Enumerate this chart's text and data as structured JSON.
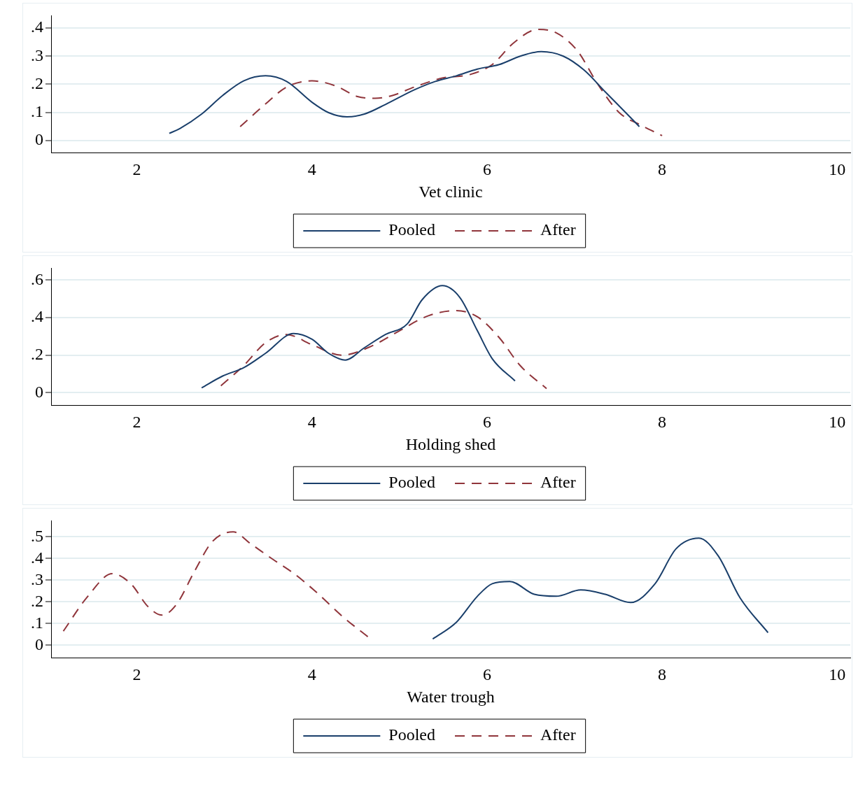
{
  "chart_data": [
    {
      "type": "line",
      "xlabel": "Vet clinic",
      "xlim": [
        1.02,
        10.15
      ],
      "xticks": [
        2,
        4,
        6,
        8,
        10
      ],
      "ylim": [
        -0.044,
        0.444
      ],
      "yticks": [
        {
          "value": 0,
          "label": "0"
        },
        {
          "value": 0.1,
          "label": ".1"
        },
        {
          "value": 0.2,
          "label": ".2"
        },
        {
          "value": 0.3,
          "label": ".3"
        },
        {
          "value": 0.4,
          "label": ".4"
        }
      ],
      "grid": "y",
      "legend": "bottom",
      "marker": "none",
      "series": [
        {
          "name": "Pooled",
          "color": "#1a3f6b",
          "line_style": "solid",
          "x": [
            2.37,
            2.49,
            2.74,
            2.98,
            3.22,
            3.47,
            3.71,
            4.0,
            4.19,
            4.4,
            4.6,
            4.84,
            5.17,
            5.41,
            5.65,
            5.89,
            6.14,
            6.38,
            6.62,
            6.87,
            7.11,
            7.35,
            7.6,
            7.74
          ],
          "values": [
            0.025,
            0.042,
            0.094,
            0.16,
            0.212,
            0.23,
            0.21,
            0.136,
            0.099,
            0.084,
            0.094,
            0.128,
            0.18,
            0.21,
            0.23,
            0.254,
            0.27,
            0.3,
            0.316,
            0.3,
            0.25,
            0.173,
            0.094,
            0.049
          ]
        },
        {
          "name": "After",
          "color": "#90353b",
          "line_style": "dashed",
          "x": [
            3.18,
            3.47,
            3.71,
            4.0,
            4.28,
            4.52,
            4.72,
            4.92,
            5.17,
            5.49,
            5.81,
            6.06,
            6.3,
            6.58,
            6.79,
            7.03,
            7.27,
            7.51,
            7.76,
            8.0
          ],
          "values": [
            0.049,
            0.13,
            0.19,
            0.212,
            0.193,
            0.156,
            0.15,
            0.16,
            0.19,
            0.222,
            0.235,
            0.27,
            0.346,
            0.395,
            0.383,
            0.32,
            0.198,
            0.099,
            0.054,
            0.017
          ]
        }
      ]
    },
    {
      "type": "line",
      "xlabel": "Holding shed",
      "xlim": [
        1.02,
        10.15
      ],
      "xticks": [
        2,
        4,
        6,
        8,
        10
      ],
      "ylim": [
        -0.067,
        0.663
      ],
      "yticks": [
        {
          "value": 0,
          "label": "0"
        },
        {
          "value": 0.2,
          "label": ".2"
        },
        {
          "value": 0.4,
          "label": ".4"
        },
        {
          "value": 0.6,
          "label": ".6"
        }
      ],
      "grid": "y",
      "legend": "bottom",
      "marker": "none",
      "series": [
        {
          "name": "Pooled",
          "color": "#1a3f6b",
          "line_style": "solid",
          "x": [
            2.74,
            2.98,
            3.22,
            3.47,
            3.79,
            4.0,
            4.19,
            4.38,
            4.6,
            4.84,
            5.09,
            5.26,
            5.49,
            5.69,
            5.89,
            6.06,
            6.32
          ],
          "values": [
            0.026,
            0.089,
            0.133,
            0.21,
            0.315,
            0.285,
            0.21,
            0.174,
            0.24,
            0.31,
            0.367,
            0.496,
            0.57,
            0.507,
            0.33,
            0.181,
            0.063
          ]
        },
        {
          "name": "After",
          "color": "#90353b",
          "line_style": "dashed",
          "x": [
            2.96,
            3.22,
            3.47,
            3.71,
            4.0,
            4.34,
            4.68,
            5.0,
            5.33,
            5.65,
            5.89,
            6.14,
            6.38,
            6.68
          ],
          "values": [
            0.037,
            0.144,
            0.267,
            0.31,
            0.256,
            0.2,
            0.248,
            0.33,
            0.41,
            0.437,
            0.404,
            0.293,
            0.144,
            0.022
          ]
        }
      ]
    },
    {
      "type": "line",
      "xlabel": "Water trough",
      "xlim": [
        1.02,
        10.15
      ],
      "xticks": [
        2,
        4,
        6,
        8,
        10
      ],
      "ylim": [
        -0.058,
        0.574
      ],
      "yticks": [
        {
          "value": 0,
          "label": "0"
        },
        {
          "value": 0.1,
          "label": ".1"
        },
        {
          "value": 0.2,
          "label": ".2"
        },
        {
          "value": 0.3,
          "label": ".3"
        },
        {
          "value": 0.4,
          "label": ".4"
        },
        {
          "value": 0.5,
          "label": ".5"
        }
      ],
      "grid": "y",
      "legend": "bottom",
      "marker": "none",
      "series": [
        {
          "name": "Pooled",
          "color": "#1a3f6b",
          "line_style": "solid",
          "x": [
            5.38,
            5.65,
            5.89,
            6.06,
            6.26,
            6.54,
            6.79,
            7.07,
            7.35,
            7.64,
            7.92,
            8.16,
            8.42,
            8.64,
            8.89,
            9.21
          ],
          "values": [
            0.029,
            0.106,
            0.226,
            0.284,
            0.294,
            0.235,
            0.226,
            0.255,
            0.235,
            0.197,
            0.284,
            0.445,
            0.494,
            0.413,
            0.219,
            0.058
          ]
        },
        {
          "name": "After",
          "color": "#90353b",
          "line_style": "dashed",
          "x": [
            1.16,
            1.44,
            1.72,
            1.93,
            2.13,
            2.29,
            2.45,
            2.66,
            2.86,
            3.1,
            3.3,
            3.55,
            3.79,
            4.03,
            4.36,
            4.64
          ],
          "values": [
            0.065,
            0.226,
            0.33,
            0.284,
            0.177,
            0.139,
            0.187,
            0.342,
            0.477,
            0.523,
            0.468,
            0.397,
            0.332,
            0.252,
            0.129,
            0.039
          ]
        }
      ]
    }
  ]
}
